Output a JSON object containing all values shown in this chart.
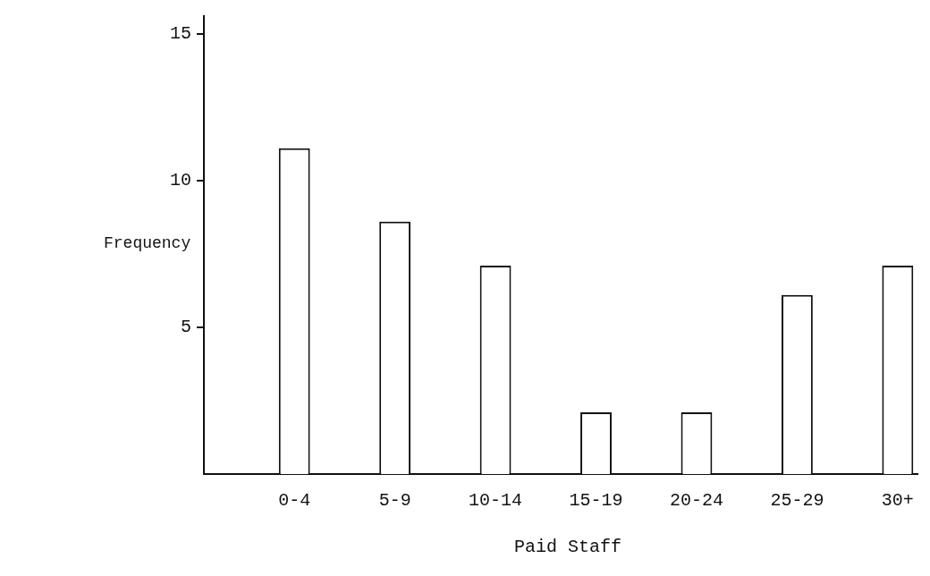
{
  "chart_data": {
    "type": "bar",
    "xlabel": "Paid Staff",
    "ylabel": "Frequency",
    "categories": [
      "0-4",
      "5-9",
      "10-14",
      "15-19",
      "20-24",
      "25-29",
      "30+"
    ],
    "values": [
      11.1,
      8.6,
      7.1,
      2.1,
      2.1,
      6.1,
      7.1
    ],
    "color": "#ffffff",
    "ylim": [
      0,
      15.6
    ],
    "yticks": [
      5,
      10,
      15
    ]
  }
}
